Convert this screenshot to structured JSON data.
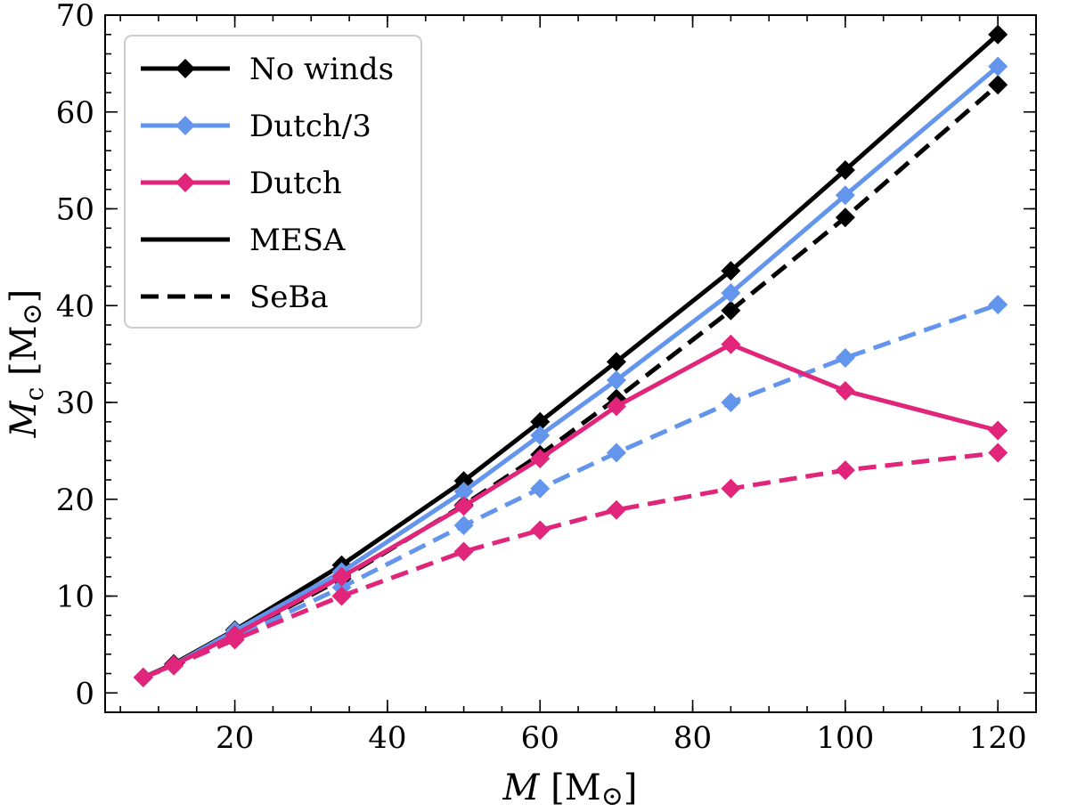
{
  "chart_data": {
    "type": "line",
    "title": "",
    "xlabel": "M [M⊙]",
    "ylabel": "Mc [M⊙]",
    "xlim": [
      3,
      125
    ],
    "ylim": [
      -2,
      70
    ],
    "x_ticks": [
      20,
      40,
      60,
      80,
      100,
      120
    ],
    "y_ticks": [
      0,
      10,
      20,
      30,
      40,
      50,
      60,
      70
    ],
    "x_tick_labels": [
      "20",
      "40",
      "60",
      "80",
      "100",
      "120"
    ],
    "y_tick_labels": [
      "0",
      "10",
      "20",
      "30",
      "40",
      "50",
      "60",
      "70"
    ],
    "x_minor_step": 5,
    "y_minor_step": 2,
    "x": [
      8,
      12,
      20,
      34,
      50,
      60,
      70,
      85,
      100,
      120
    ],
    "series": [
      {
        "name": "No winds",
        "model": "MESA",
        "color": "#000000",
        "dash": "solid",
        "values": [
          1.6,
          3.0,
          6.5,
          13.2,
          21.9,
          28.0,
          34.2,
          43.6,
          54.0,
          68.0
        ]
      },
      {
        "name": "Dutch/3",
        "model": "MESA",
        "color": "#6495ed",
        "dash": "solid",
        "values": [
          1.6,
          2.9,
          6.4,
          12.5,
          20.8,
          26.6,
          32.3,
          41.3,
          51.4,
          64.7
        ]
      },
      {
        "name": "Dutch",
        "model": "MESA",
        "color": "#e0257a",
        "dash": "solid",
        "values": [
          1.6,
          2.9,
          6.0,
          12.0,
          19.3,
          24.2,
          29.6,
          36.0,
          31.2,
          27.1
        ]
      },
      {
        "name": "No winds",
        "model": "SeBa",
        "color": "#000000",
        "dash": "dashed",
        "values": [
          1.6,
          2.9,
          5.9,
          11.8,
          19.4,
          24.6,
          30.4,
          39.5,
          49.1,
          62.8
        ]
      },
      {
        "name": "Dutch/3",
        "model": "SeBa",
        "color": "#6495ed",
        "dash": "dashed",
        "values": [
          1.6,
          2.9,
          5.7,
          10.9,
          17.3,
          21.1,
          24.8,
          30.0,
          34.6,
          40.1
        ]
      },
      {
        "name": "Dutch",
        "model": "SeBa",
        "color": "#e0257a",
        "dash": "dashed",
        "values": [
          1.6,
          2.8,
          5.5,
          10.0,
          14.6,
          16.8,
          18.9,
          21.1,
          23.0,
          24.8
        ]
      }
    ],
    "legend": {
      "position": "top-left",
      "entries": [
        {
          "label": "No winds",
          "color": "#000000",
          "dash": "solid",
          "marker": true
        },
        {
          "label": "Dutch/3",
          "color": "#6495ed",
          "dash": "solid",
          "marker": true
        },
        {
          "label": "Dutch",
          "color": "#e0257a",
          "dash": "solid",
          "marker": true
        },
        {
          "label": "MESA",
          "color": "#000000",
          "dash": "solid",
          "marker": false
        },
        {
          "label": "SeBa",
          "color": "#000000",
          "dash": "dashed",
          "marker": false
        }
      ]
    }
  }
}
